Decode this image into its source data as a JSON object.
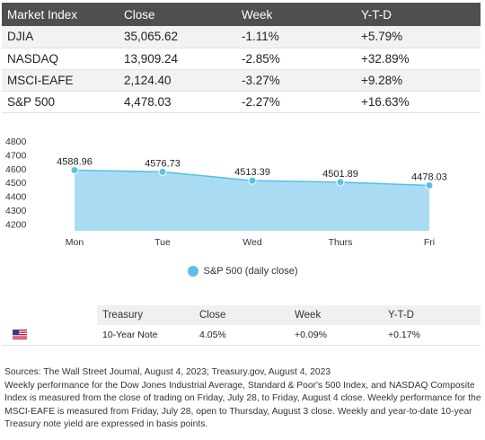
{
  "market_table": {
    "headers": [
      "Market Index",
      "Close",
      "Week",
      "Y-T-D"
    ],
    "rows": [
      [
        "DJIA",
        "35,065.62",
        "-1.11%",
        "+5.79%"
      ],
      [
        "NASDAQ",
        "13,909.24",
        "-2.85%",
        "+32.89%"
      ],
      [
        "MSCI-EAFE",
        "2,124.40",
        "-3.27%",
        "+9.28%"
      ],
      [
        "S&P 500",
        "4,478.03",
        "-2.27%",
        "+16.63%"
      ]
    ]
  },
  "chart_data": {
    "type": "area",
    "categories": [
      "Mon",
      "Tue",
      "Wed",
      "Thurs",
      "Fri"
    ],
    "series": [
      {
        "name": "S&P 500 (daily close)",
        "values": [
          4588.96,
          4576.73,
          4513.39,
          4501.89,
          4478.03
        ]
      }
    ],
    "data_labels": [
      "4588.96",
      "4576.73",
      "4513.39",
      "4501.89",
      "4478.03"
    ],
    "yticks": [
      4200,
      4300,
      4400,
      4500,
      4600,
      4700,
      4800
    ],
    "ylim": [
      4150,
      4800
    ],
    "grid": false,
    "legend_position": "bottom-center",
    "color": "#5bbfe6",
    "fill_color": "#a9dcf3"
  },
  "legend": {
    "label": "S&P 500 (daily close)"
  },
  "treasury_table": {
    "headers": [
      "",
      "Treasury",
      "Close",
      "Week",
      "Y-T-D"
    ],
    "row": {
      "flag_icon": "us-flag-icon",
      "name": "10-Year Note",
      "close": "4.05%",
      "week": "+0.09%",
      "ytd": "+0.17%"
    }
  },
  "footer": {
    "sources": "Sources: The Wall Street Journal, August 4, 2023; Treasury.gov, August 4, 2023",
    "note": "Weekly performance for the Dow Jones Industrial Average, Standard & Poor's 500 Index, and NASDAQ Composite Index is measured from the close of trading on Friday, July 28, to Friday, August 4 close. Weekly performance for the MSCI-EAFE is measured from Friday, July 28, open to Thursday, August 3 close. Weekly and year-to-date 10-year Treasury note yield are expressed in basis points."
  }
}
